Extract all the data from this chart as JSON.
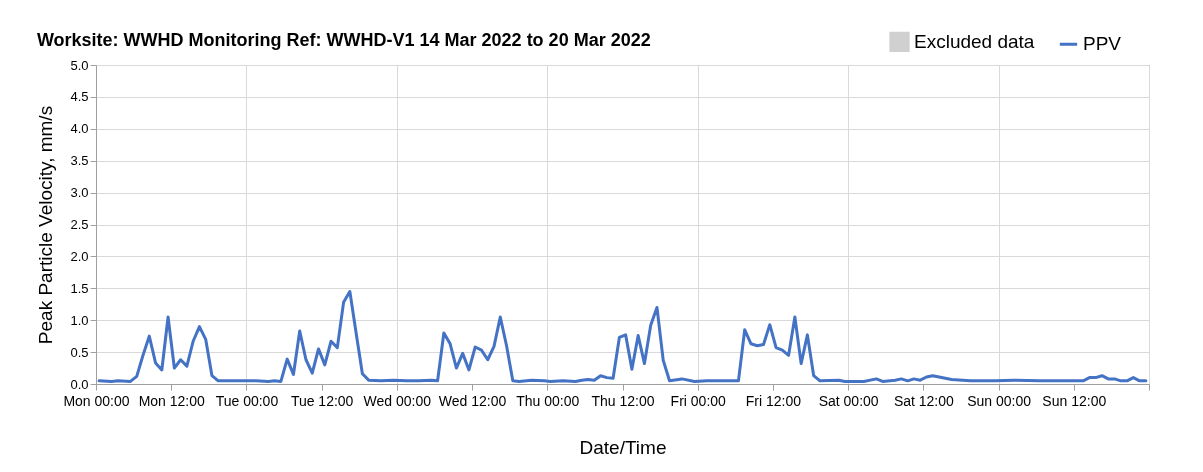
{
  "chart_data": {
    "type": "line",
    "title": "Worksite: WWHD    Monitoring Ref: WWHD-V1      14 Mar 2022 to 20 Mar 2022",
    "xlabel": "Date/Time",
    "ylabel": "Peak Particle Velocity, mm/s",
    "x": [
      "2022-03-14T00:30",
      "2022-03-14T02:30",
      "2022-03-14T03:30",
      "2022-03-14T05:30",
      "2022-03-14T06:30",
      "2022-03-14T07:30",
      "2022-03-14T08:30",
      "2022-03-14T09:30",
      "2022-03-14T10:30",
      "2022-03-14T11:30",
      "2022-03-14T12:30",
      "2022-03-14T13:30",
      "2022-03-14T14:30",
      "2022-03-14T15:30",
      "2022-03-14T16:30",
      "2022-03-14T17:30",
      "2022-03-14T18:30",
      "2022-03-14T19:30",
      "2022-03-14T22:30",
      "2022-03-15T01:30",
      "2022-03-15T03:30",
      "2022-03-15T04:30",
      "2022-03-15T05:30",
      "2022-03-15T06:30",
      "2022-03-15T07:30",
      "2022-03-15T08:30",
      "2022-03-15T09:30",
      "2022-03-15T10:30",
      "2022-03-15T11:30",
      "2022-03-15T12:30",
      "2022-03-15T13:30",
      "2022-03-15T14:30",
      "2022-03-15T15:30",
      "2022-03-15T16:30",
      "2022-03-15T17:30",
      "2022-03-15T18:30",
      "2022-03-15T19:30",
      "2022-03-15T21:30",
      "2022-03-15T23:30",
      "2022-03-16T01:30",
      "2022-03-16T03:30",
      "2022-03-16T05:30",
      "2022-03-16T06:30",
      "2022-03-16T07:30",
      "2022-03-16T08:30",
      "2022-03-16T09:30",
      "2022-03-16T10:30",
      "2022-03-16T11:30",
      "2022-03-16T12:30",
      "2022-03-16T13:30",
      "2022-03-16T14:30",
      "2022-03-16T15:30",
      "2022-03-16T16:30",
      "2022-03-16T17:30",
      "2022-03-16T18:30",
      "2022-03-16T19:30",
      "2022-03-16T21:30",
      "2022-03-16T23:30",
      "2022-03-17T00:30",
      "2022-03-17T02:30",
      "2022-03-17T04:30",
      "2022-03-17T05:30",
      "2022-03-17T06:30",
      "2022-03-17T07:30",
      "2022-03-17T08:30",
      "2022-03-17T09:30",
      "2022-03-17T10:30",
      "2022-03-17T11:30",
      "2022-03-17T12:30",
      "2022-03-17T13:30",
      "2022-03-17T14:30",
      "2022-03-17T15:30",
      "2022-03-17T16:30",
      "2022-03-17T17:30",
      "2022-03-17T18:30",
      "2022-03-17T19:30",
      "2022-03-17T21:30",
      "2022-03-17T23:30",
      "2022-03-18T01:30",
      "2022-03-18T03:30",
      "2022-03-18T05:30",
      "2022-03-18T06:30",
      "2022-03-18T07:30",
      "2022-03-18T08:30",
      "2022-03-18T09:30",
      "2022-03-18T10:30",
      "2022-03-18T11:30",
      "2022-03-18T12:30",
      "2022-03-18T13:30",
      "2022-03-18T14:30",
      "2022-03-18T15:30",
      "2022-03-18T16:30",
      "2022-03-18T17:30",
      "2022-03-18T18:30",
      "2022-03-18T19:30",
      "2022-03-18T22:30",
      "2022-03-18T23:30",
      "2022-03-19T02:30",
      "2022-03-19T04:30",
      "2022-03-19T05:30",
      "2022-03-19T07:30",
      "2022-03-19T08:30",
      "2022-03-19T09:30",
      "2022-03-19T10:30",
      "2022-03-19T11:30",
      "2022-03-19T12:30",
      "2022-03-19T13:30",
      "2022-03-19T14:30",
      "2022-03-19T16:30",
      "2022-03-19T19:30",
      "2022-03-19T23:30",
      "2022-03-20T02:30",
      "2022-03-20T06:30",
      "2022-03-20T10:30",
      "2022-03-20T13:30",
      "2022-03-20T14:30",
      "2022-03-20T15:30",
      "2022-03-20T16:30",
      "2022-03-20T17:30",
      "2022-03-20T18:30",
      "2022-03-20T19:30",
      "2022-03-20T20:30",
      "2022-03-20T21:30",
      "2022-03-20T22:30",
      "2022-03-20T23:30"
    ],
    "series": [
      {
        "name": "Excluded data",
        "type": "area",
        "color": "#d0d0d0",
        "values": [
          null,
          null,
          null,
          null,
          null,
          null,
          null,
          null,
          null,
          null,
          null,
          null,
          null,
          null,
          null,
          null,
          null,
          null,
          null,
          null,
          null,
          null,
          null,
          null,
          null,
          null,
          null,
          null,
          null,
          null,
          null,
          null,
          null,
          null,
          null,
          null,
          null,
          null,
          null,
          null,
          null,
          null,
          null,
          null,
          null,
          null,
          null,
          null,
          null,
          null,
          null,
          null,
          null,
          null,
          null,
          null,
          null,
          null,
          null,
          null,
          null,
          null,
          null,
          null,
          null,
          null,
          null,
          null,
          null,
          null,
          null,
          null,
          null,
          null,
          null,
          null,
          null,
          null,
          null,
          null,
          null,
          null,
          null,
          null,
          null,
          null,
          null,
          null,
          null,
          null,
          null,
          null,
          null,
          null,
          null,
          null,
          null,
          null,
          null,
          null,
          null,
          null,
          null,
          null,
          null,
          null,
          null,
          null,
          null,
          null,
          null,
          null,
          null,
          null,
          null,
          null,
          null,
          null,
          null,
          null,
          null,
          null,
          null,
          null,
          null
        ]
      },
      {
        "name": "PPV",
        "type": "line",
        "color": "#4472c4",
        "values": [
          0.05,
          0.04,
          0.05,
          0.04,
          0.12,
          0.45,
          0.75,
          0.33,
          0.22,
          1.05,
          0.25,
          0.38,
          0.28,
          0.67,
          0.9,
          0.7,
          0.13,
          0.05,
          0.05,
          0.05,
          0.04,
          0.05,
          0.04,
          0.39,
          0.15,
          0.83,
          0.38,
          0.17,
          0.55,
          0.3,
          0.67,
          0.57,
          1.28,
          1.45,
          0.8,
          0.16,
          0.06,
          0.05,
          0.06,
          0.05,
          0.05,
          0.06,
          0.05,
          0.8,
          0.63,
          0.25,
          0.48,
          0.22,
          0.58,
          0.53,
          0.38,
          0.59,
          1.05,
          0.6,
          0.05,
          0.04,
          0.06,
          0.05,
          0.04,
          0.05,
          0.04,
          0.06,
          0.07,
          0.06,
          0.13,
          0.1,
          0.09,
          0.73,
          0.77,
          0.23,
          0.76,
          0.32,
          0.92,
          1.2,
          0.37,
          0.05,
          0.08,
          0.04,
          0.05,
          0.05,
          0.05,
          0.05,
          0.85,
          0.63,
          0.6,
          0.62,
          0.93,
          0.57,
          0.53,
          0.45,
          1.05,
          0.32,
          0.77,
          0.13,
          0.05,
          0.06,
          0.04,
          0.04,
          0.08,
          0.04,
          0.06,
          0.08,
          0.05,
          0.08,
          0.06,
          0.11,
          0.13,
          0.11,
          0.07,
          0.05,
          0.05,
          0.06,
          0.05,
          0.05,
          0.05,
          0.1,
          0.1,
          0.13,
          0.08,
          0.08,
          0.05,
          0.05,
          0.1,
          0.05,
          0.05
        ]
      }
    ],
    "xlim": [
      "2022-03-14T00:00",
      "2022-03-21T00:00"
    ],
    "xticks": [
      {
        "value": "2022-03-14T00:00",
        "label": "Mon 00:00"
      },
      {
        "value": "2022-03-14T12:00",
        "label": "Mon 12:00"
      },
      {
        "value": "2022-03-15T00:00",
        "label": "Tue 00:00"
      },
      {
        "value": "2022-03-15T12:00",
        "label": "Tue 12:00"
      },
      {
        "value": "2022-03-16T00:00",
        "label": "Wed 00:00"
      },
      {
        "value": "2022-03-16T12:00",
        "label": "Wed 12:00"
      },
      {
        "value": "2022-03-17T00:00",
        "label": "Thu 00:00"
      },
      {
        "value": "2022-03-17T12:00",
        "label": "Thu 12:00"
      },
      {
        "value": "2022-03-18T00:00",
        "label": "Fri 00:00"
      },
      {
        "value": "2022-03-18T12:00",
        "label": "Fri 12:00"
      },
      {
        "value": "2022-03-19T00:00",
        "label": "Sat 00:00"
      },
      {
        "value": "2022-03-19T12:00",
        "label": "Sat 12:00"
      },
      {
        "value": "2022-03-20T00:00",
        "label": "Sun 00:00"
      },
      {
        "value": "2022-03-20T12:00",
        "label": "Sun 12:00"
      },
      {
        "value": "2022-03-21T00:00",
        "label": null
      }
    ],
    "ylim": [
      0,
      5
    ],
    "yticks": [
      {
        "value": 0,
        "label": "0.0"
      },
      {
        "value": 0.5,
        "label": "0.5"
      },
      {
        "value": 1,
        "label": "1.0"
      },
      {
        "value": 1.5,
        "label": "1.5"
      },
      {
        "value": 2,
        "label": "2.0"
      },
      {
        "value": 2.5,
        "label": "2.5"
      },
      {
        "value": 3,
        "label": "3.0"
      },
      {
        "value": 3.5,
        "label": "3.5"
      },
      {
        "value": 4,
        "label": "4.0"
      },
      {
        "value": 4.5,
        "label": "4.5"
      },
      {
        "value": 5,
        "label": "5.0"
      }
    ],
    "grid": true,
    "legend": "top right",
    "line_style": "solid"
  }
}
